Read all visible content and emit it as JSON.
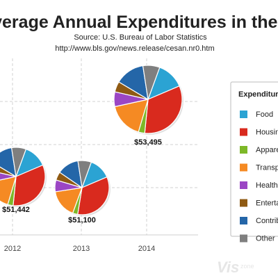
{
  "chart_data": {
    "type": "pie",
    "title": "Average Annual Expenditures in the U.S.",
    "subtitle_source": "Source: U.S. Bureau of Labor Statistics",
    "subtitle_url": "http://www.bls.gov/news.release/cesan.nr0.htm",
    "x_ticks": [
      "2012",
      "2013",
      "2014"
    ],
    "grid": true,
    "legend": {
      "title": "Expenditures",
      "placement": "right",
      "entries": [
        {
          "name": "Food",
          "color": "#2ba3d3"
        },
        {
          "name": "Housing",
          "color": "#d92a1e"
        },
        {
          "name": "Apparel",
          "color": "#7db828"
        },
        {
          "name": "Transportation",
          "color": "#f58a23"
        },
        {
          "name": "Healthcare",
          "color": "#9b46c4"
        },
        {
          "name": "Entertainment",
          "color": "#8f5a13"
        },
        {
          "name": "Contributions",
          "color": "#2466a8"
        },
        {
          "name": "Other",
          "color": "#7f7f7f"
        }
      ]
    },
    "pies": [
      {
        "year": "2012",
        "total": 51442,
        "label": "$51,442",
        "values": [
          13,
          33,
          3,
          17,
          7,
          5,
          14,
          8
        ]
      },
      {
        "year": "2013",
        "total": 51100,
        "label": "$51,100",
        "values": [
          13,
          34,
          3,
          17,
          7,
          5,
          13,
          8
        ]
      },
      {
        "year": "2014",
        "total": 53495,
        "label": "$53,495",
        "values": [
          13,
          33,
          3,
          17,
          7,
          5,
          14,
          8
        ]
      }
    ]
  },
  "watermark": {
    "main": "Vis",
    "small": "zone"
  }
}
